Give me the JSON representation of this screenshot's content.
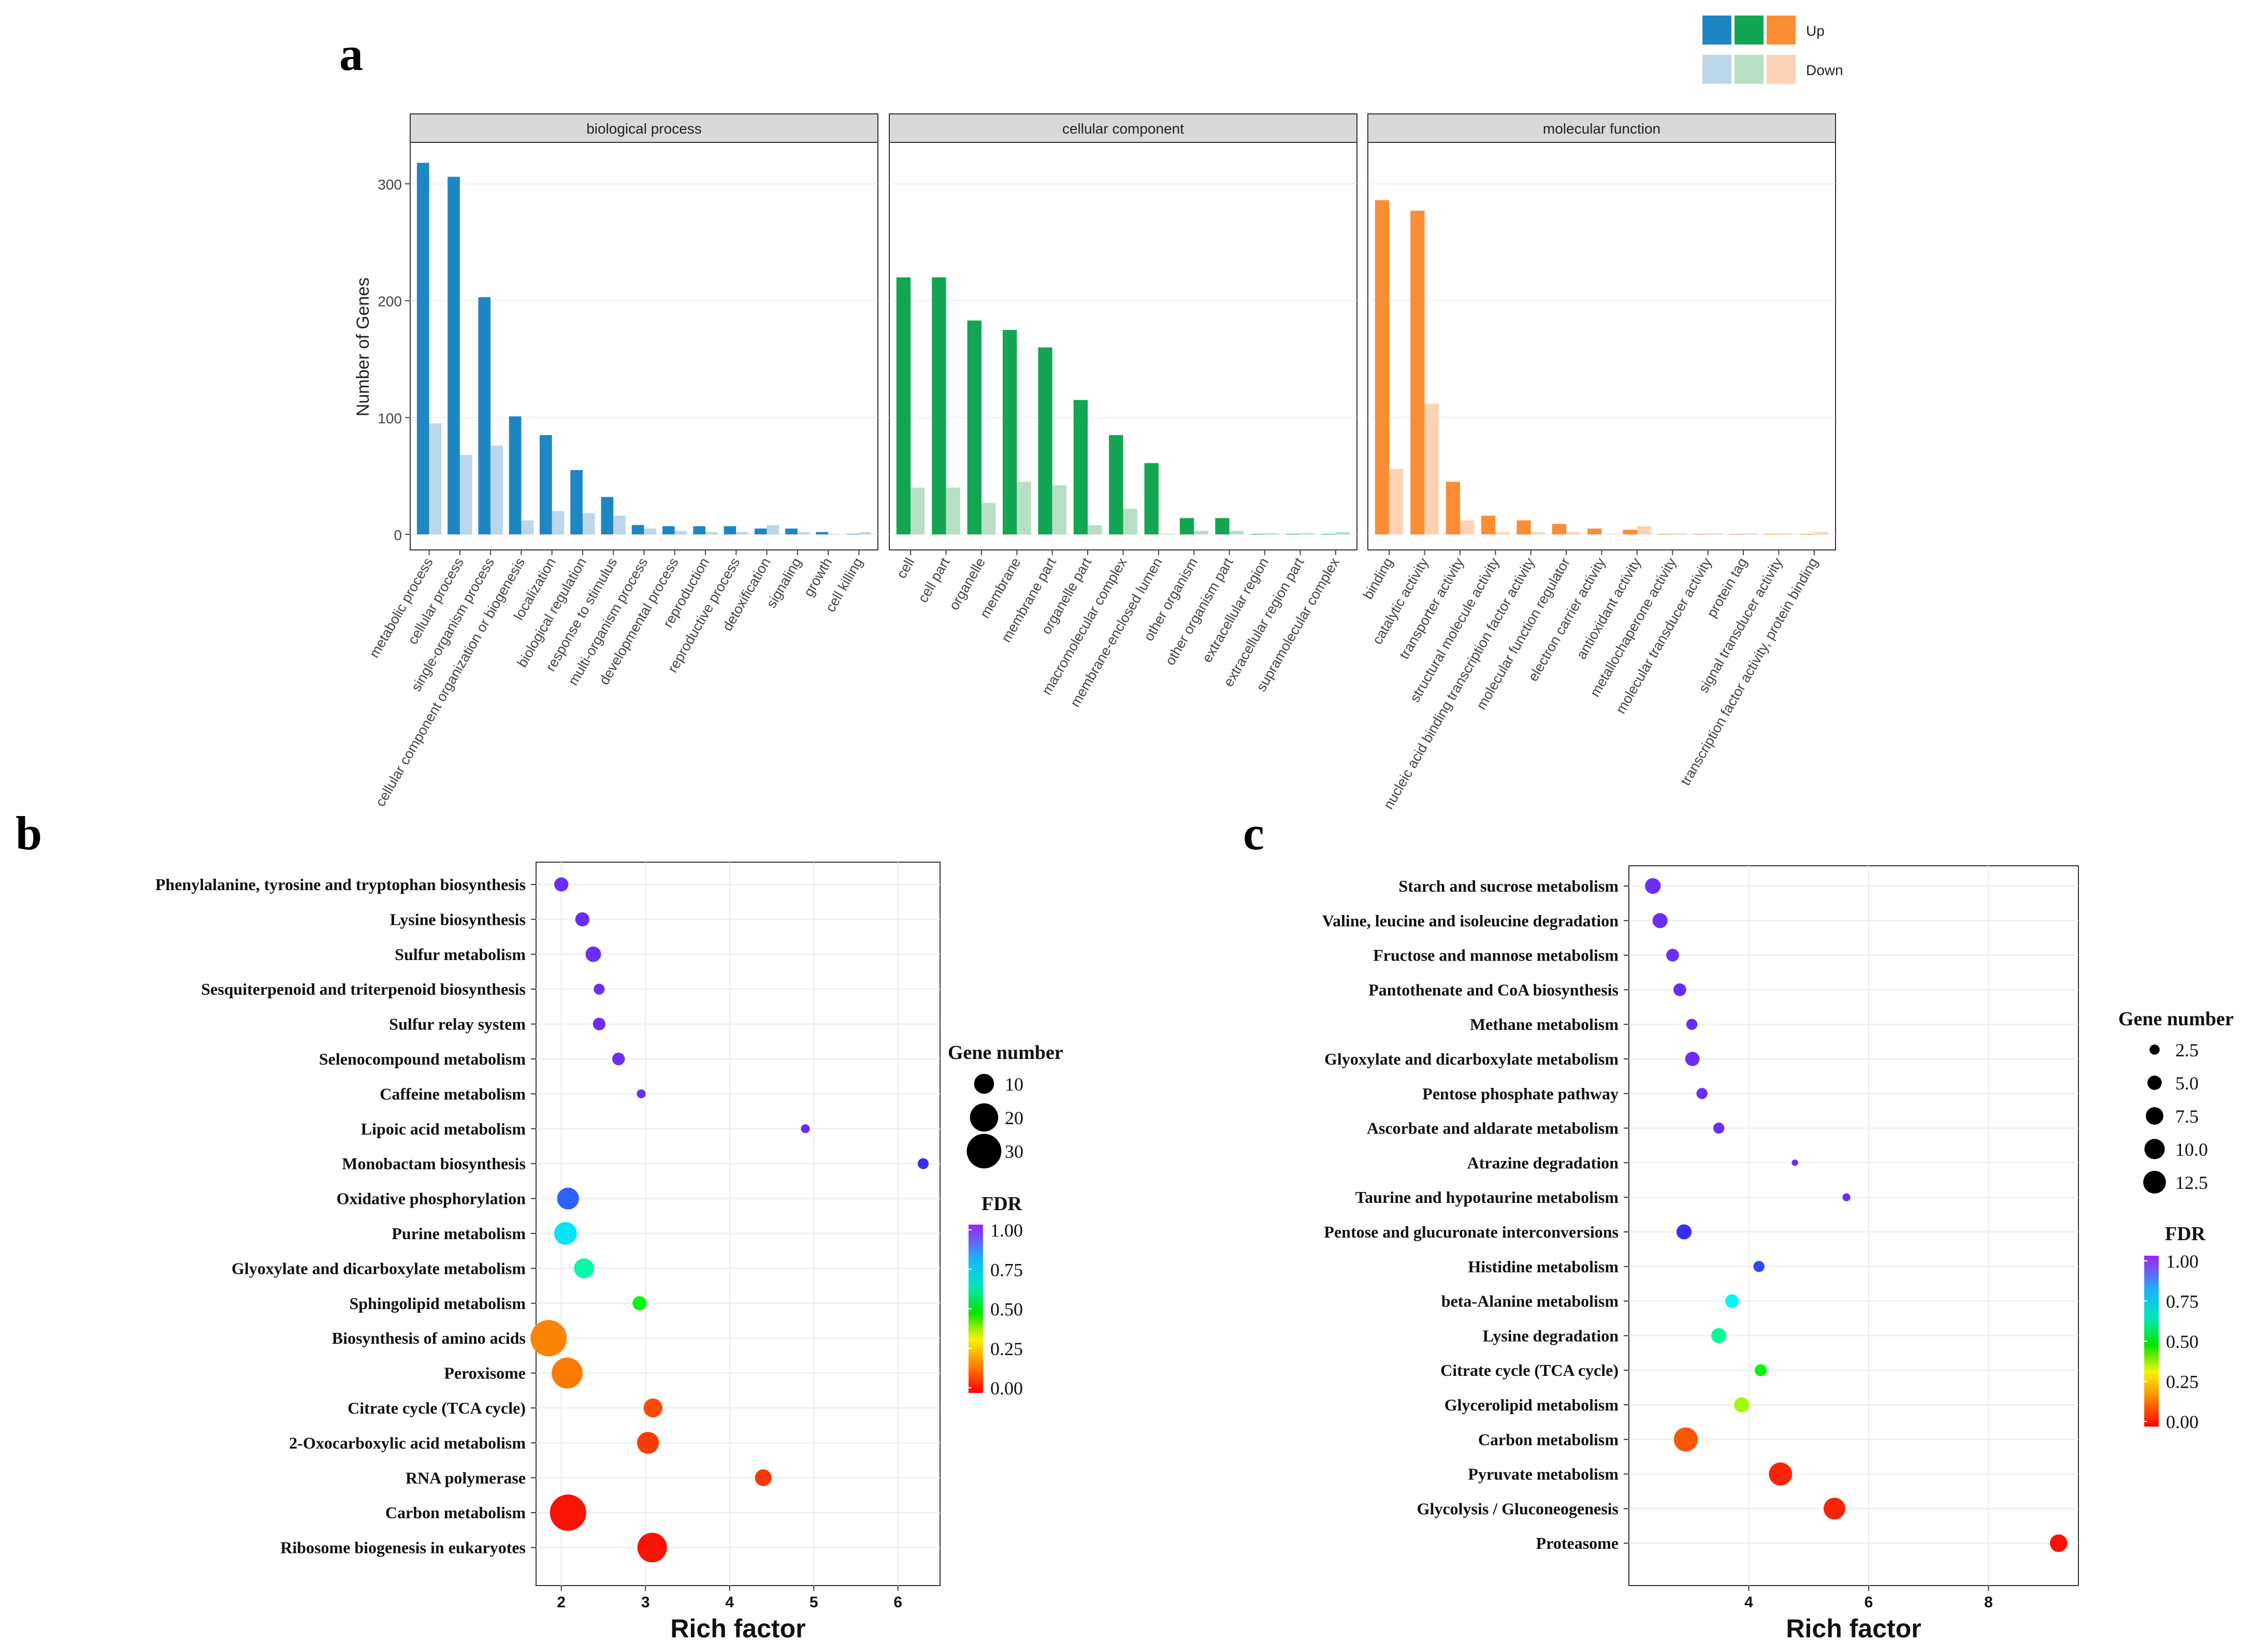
{
  "figure_labels": {
    "a": "a",
    "b": "b",
    "c": "c"
  },
  "colors": {
    "bp_up": "#1f86c4",
    "bp_down": "#bcd6ea",
    "cc_up": "#12a652",
    "cc_down": "#b6dfc3",
    "mf_up": "#fb8d35",
    "mf_down": "#fdd2b6",
    "strip_bg": "#d9d9d9",
    "grid": "#ebebeb",
    "panel_border": "#333333"
  },
  "chart_data": [
    {
      "id": "a",
      "type": "bar",
      "ylabel": "Number of Genes",
      "ylim": [
        0,
        330
      ],
      "yticks": [
        0,
        100,
        200,
        300
      ],
      "legend": {
        "up": "Up",
        "down": "Down"
      },
      "facets": [
        {
          "name": "biological process",
          "categories": [
            "metabolic process",
            "cellular process",
            "single-organism process",
            "cellular component organization or biogenesis",
            "localization",
            "biological regulation",
            "response to stimulus",
            "multi-organism process",
            "developmental process",
            "reproduction",
            "reproductive process",
            "detoxification",
            "signaling",
            "growth",
            "cell killing"
          ],
          "series": [
            {
              "name": "Up",
              "values": [
                318,
                306,
                203,
                101,
                85,
                55,
                32,
                8,
                7,
                7,
                7,
                5,
                5,
                2,
                0
              ]
            },
            {
              "name": "Down",
              "values": [
                95,
                68,
                76,
                12,
                20,
                18,
                16,
                5,
                3,
                2,
                2,
                8,
                2,
                0,
                2
              ]
            }
          ]
        },
        {
          "name": "cellular component",
          "categories": [
            "cell",
            "cell part",
            "organelle",
            "membrane",
            "membrane part",
            "organelle part",
            "macromolecular complex",
            "membrane-enclosed lumen",
            "other organism",
            "other organism part",
            "extracellular region",
            "extracellular region part",
            "supramolecular complex"
          ],
          "series": [
            {
              "name": "Up",
              "values": [
                220,
                220,
                183,
                175,
                160,
                115,
                85,
                61,
                14,
                14,
                0,
                0,
                0
              ]
            },
            {
              "name": "Down",
              "values": [
                40,
                40,
                27,
                45,
                42,
                8,
                22,
                0,
                3,
                3,
                1,
                1,
                2
              ]
            }
          ]
        },
        {
          "name": "molecular function",
          "categories": [
            "binding",
            "catalytic activity",
            "transporter activity",
            "structural molecule activity",
            "nucleic acid binding transcription factor activity",
            "molecular function regulator",
            "electron carrier activity",
            "antioxidant activity",
            "metallochaperone activity",
            "molecular transducer activity",
            "protein tag",
            "signal transducer activity",
            "transcription factor activity, protein binding"
          ],
          "series": [
            {
              "name": "Up",
              "values": [
                286,
                277,
                45,
                16,
                12,
                9,
                5,
                4,
                0,
                0,
                0,
                0,
                0
              ]
            },
            {
              "name": "Down",
              "values": [
                56,
                112,
                12,
                2,
                2,
                2,
                0,
                7,
                1,
                1,
                1,
                1,
                2
              ]
            }
          ]
        }
      ]
    },
    {
      "id": "b",
      "type": "scatter",
      "xlabel": "Rich factor",
      "xlim": [
        1.7,
        6.5
      ],
      "xticks": [
        2,
        3,
        4,
        5,
        6
      ],
      "size_legend_title": "Gene number",
      "size_legend": [
        10,
        20,
        30
      ],
      "color_legend_title": "FDR",
      "color_legend": [
        "1.00",
        "0.75",
        "0.50",
        "0.25",
        "0.00"
      ],
      "points": [
        {
          "label": "Phenylalanine, tyrosine and tryptophan biosynthesis",
          "x": 2.0,
          "fdr": 0.95,
          "size": 5
        },
        {
          "label": "Lysine biosynthesis",
          "x": 2.25,
          "fdr": 0.95,
          "size": 5
        },
        {
          "label": "Sulfur metabolism",
          "x": 2.38,
          "fdr": 0.95,
          "size": 6
        },
        {
          "label": "Sesquiterpenoid and triterpenoid biosynthesis",
          "x": 2.45,
          "fdr": 0.95,
          "size": 3
        },
        {
          "label": "Sulfur relay system",
          "x": 2.45,
          "fdr": 0.95,
          "size": 4
        },
        {
          "label": "Selenocompound metabolism",
          "x": 2.68,
          "fdr": 0.95,
          "size": 4
        },
        {
          "label": "Caffeine metabolism",
          "x": 2.95,
          "fdr": 0.95,
          "size": 2
        },
        {
          "label": "Lipoic acid metabolism",
          "x": 4.9,
          "fdr": 0.95,
          "size": 2
        },
        {
          "label": "Monobactam biosynthesis",
          "x": 6.3,
          "fdr": 0.9,
          "size": 3
        },
        {
          "label": "Oxidative phosphorylation",
          "x": 2.08,
          "fdr": 0.85,
          "size": 12
        },
        {
          "label": "Purine metabolism",
          "x": 2.05,
          "fdr": 0.72,
          "size": 13
        },
        {
          "label": "Glyoxylate and dicarboxylate metabolism",
          "x": 2.27,
          "fdr": 0.6,
          "size": 10
        },
        {
          "label": "Sphingolipid metabolism",
          "x": 2.93,
          "fdr": 0.45,
          "size": 5
        },
        {
          "label": "Biosynthesis of amino acids",
          "x": 1.85,
          "fdr": 0.18,
          "size": 33
        },
        {
          "label": "Peroxisome",
          "x": 2.07,
          "fdr": 0.17,
          "size": 24
        },
        {
          "label": "Citrate cycle (TCA cycle)",
          "x": 3.09,
          "fdr": 0.1,
          "size": 9
        },
        {
          "label": "2-Oxocarboxylic acid metabolism",
          "x": 3.03,
          "fdr": 0.08,
          "size": 12
        },
        {
          "label": "RNA polymerase",
          "x": 4.4,
          "fdr": 0.07,
          "size": 7
        },
        {
          "label": "Carbon metabolism",
          "x": 2.08,
          "fdr": 0.02,
          "size": 33
        },
        {
          "label": "Ribosome biogenesis in eukaryotes",
          "x": 3.08,
          "fdr": 0.02,
          "size": 22
        }
      ]
    },
    {
      "id": "c",
      "type": "scatter",
      "xlabel": "Rich factor",
      "xlim": [
        2.0,
        9.5
      ],
      "xticks": [
        4,
        6,
        8
      ],
      "size_legend_title": "Gene number",
      "size_legend": [
        "2.5",
        "5.0",
        "7.5",
        "10.0",
        "12.5"
      ],
      "color_legend_title": "FDR",
      "color_legend": [
        "1.00",
        "0.75",
        "0.50",
        "0.25",
        "0.00"
      ],
      "points": [
        {
          "label": "Starch and sucrose metabolism",
          "x": 2.4,
          "fdr": 0.95,
          "size": 6
        },
        {
          "label": "Valine, leucine and isoleucine degradation",
          "x": 2.52,
          "fdr": 0.95,
          "size": 5.5
        },
        {
          "label": "Fructose and mannose metabolism",
          "x": 2.73,
          "fdr": 0.95,
          "size": 4
        },
        {
          "label": "Pantothenate and CoA biosynthesis",
          "x": 2.85,
          "fdr": 0.95,
          "size": 4
        },
        {
          "label": "Methane metabolism",
          "x": 3.05,
          "fdr": 0.95,
          "size": 3
        },
        {
          "label": "Glyoxylate and dicarboxylate metabolism",
          "x": 3.06,
          "fdr": 0.95,
          "size": 5
        },
        {
          "label": "Pentose phosphate pathway",
          "x": 3.22,
          "fdr": 0.95,
          "size": 3
        },
        {
          "label": "Ascorbate and aldarate metabolism",
          "x": 3.5,
          "fdr": 0.95,
          "size": 3
        },
        {
          "label": "Atrazine degradation",
          "x": 4.77,
          "fdr": 0.95,
          "size": 1
        },
        {
          "label": "Taurine and hypotaurine metabolism",
          "x": 5.63,
          "fdr": 0.95,
          "size": 1.5
        },
        {
          "label": "Pentose and glucuronate interconversions",
          "x": 2.92,
          "fdr": 0.9,
          "size": 5.5
        },
        {
          "label": "Histidine metabolism",
          "x": 4.17,
          "fdr": 0.87,
          "size": 3
        },
        {
          "label": "beta-Alanine metabolism",
          "x": 3.72,
          "fdr": 0.7,
          "size": 4.5
        },
        {
          "label": "Lysine degradation",
          "x": 3.5,
          "fdr": 0.58,
          "size": 5.5
        },
        {
          "label": "Citrate cycle (TCA cycle)",
          "x": 4.2,
          "fdr": 0.45,
          "size": 3.5
        },
        {
          "label": "Glycerolipid metabolism",
          "x": 3.88,
          "fdr": 0.36,
          "size": 5.5
        },
        {
          "label": "Carbon metabolism",
          "x": 2.95,
          "fdr": 0.12,
          "size": 14
        },
        {
          "label": "Pyruvate metabolism",
          "x": 4.53,
          "fdr": 0.04,
          "size": 13
        },
        {
          "label": "Glycolysis / Gluconeogenesis",
          "x": 5.43,
          "fdr": 0.04,
          "size": 11.5
        },
        {
          "label": "Proteasome",
          "x": 9.17,
          "fdr": 0.02,
          "size": 7.5
        }
      ]
    }
  ]
}
